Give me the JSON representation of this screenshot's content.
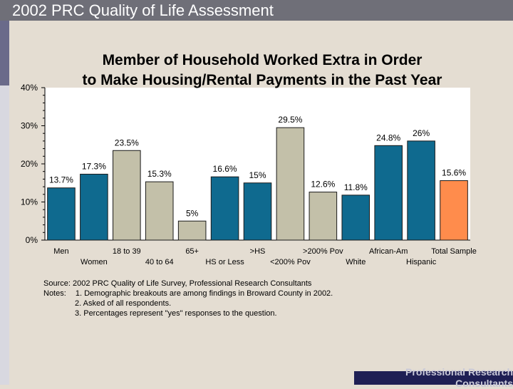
{
  "slide": {
    "title": "2002 PRC Quality of Life Assessment",
    "footer": "Professional Research Consultants"
  },
  "notes": {
    "source": "Source: 2002 PRC Quality of Life Survey, Professional Research Consultants",
    "notes_label": "Notes:",
    "items": [
      "1. Demographic breakouts are among findings in Broward County in 2002.",
      "2. Asked of all respondents.",
      "3.  Percentages represent \"yes\" responses to the question."
    ]
  },
  "colors": {
    "blue": "#0f6a8f",
    "gray": "#c3c0a9",
    "orange": "#ff8c4c",
    "plot_bg": "#ffffff"
  },
  "chart_data": {
    "type": "bar",
    "title_lines": [
      "Member of Household Worked Extra in Order",
      "to Make Housing/Rental Payments in the Past Year"
    ],
    "categories": [
      "Men",
      "Women",
      "18 to 39",
      "40 to 64",
      "65+",
      "HS or Less",
      ">HS",
      "<200% Pov",
      ">200% Pov",
      "White",
      "African-Am",
      "Hispanic",
      "Total Sample"
    ],
    "values": [
      13.7,
      17.3,
      23.5,
      15.3,
      5,
      16.6,
      15,
      29.5,
      12.6,
      11.8,
      24.8,
      26,
      15.6
    ],
    "value_labels": [
      "13.7%",
      "17.3%",
      "23.5%",
      "15.3%",
      "5%",
      "16.6%",
      "15%",
      "29.5%",
      "12.6%",
      "11.8%",
      "24.8%",
      "26%",
      "15.6%"
    ],
    "bar_colors": [
      "blue",
      "blue",
      "gray",
      "gray",
      "gray",
      "blue",
      "blue",
      "gray",
      "gray",
      "blue",
      "blue",
      "blue",
      "orange"
    ],
    "yticks": [
      "0%",
      "10%",
      "20%",
      "30%",
      "40%"
    ],
    "ylim": [
      0,
      40
    ],
    "grid": false
  }
}
